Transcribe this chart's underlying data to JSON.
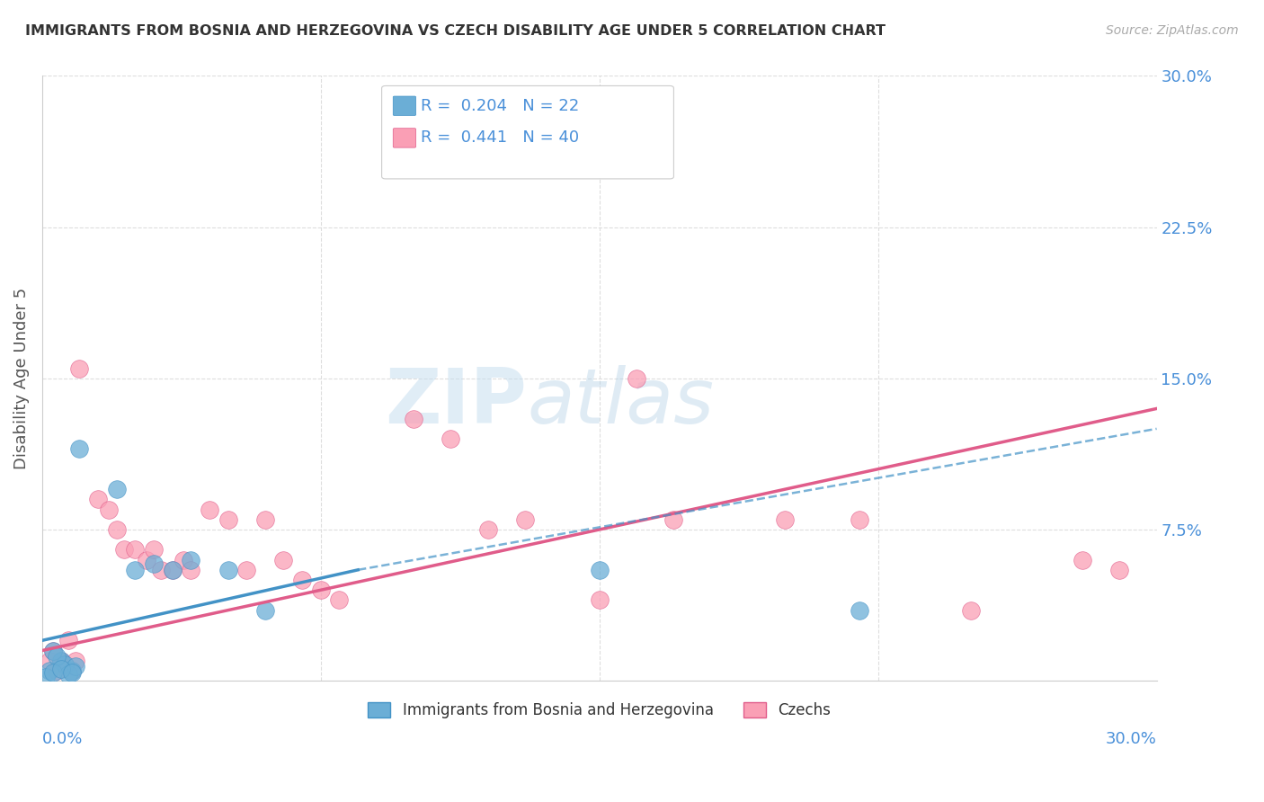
{
  "title": "IMMIGRANTS FROM BOSNIA AND HERZEGOVINA VS CZECH DISABILITY AGE UNDER 5 CORRELATION CHART",
  "source": "Source: ZipAtlas.com",
  "ylabel": "Disability Age Under 5",
  "xlim": [
    0.0,
    0.3
  ],
  "ylim": [
    0.0,
    0.3
  ],
  "watermark_zip": "ZIP",
  "watermark_atlas": "atlas",
  "legend_blue_r": "0.204",
  "legend_blue_n": "22",
  "legend_pink_r": "0.441",
  "legend_pink_n": "40",
  "legend_label_blue": "Immigrants from Bosnia and Herzegovina",
  "legend_label_pink": "Czechs",
  "blue_color": "#6baed6",
  "pink_color": "#fa9fb5",
  "blue_line_color": "#4292c6",
  "pink_line_color": "#e05c8a",
  "blue_scatter": [
    [
      0.005,
      0.01
    ],
    [
      0.008,
      0.005
    ],
    [
      0.003,
      0.015
    ],
    [
      0.006,
      0.008
    ],
    [
      0.002,
      0.005
    ],
    [
      0.004,
      0.012
    ],
    [
      0.007,
      0.003
    ],
    [
      0.009,
      0.007
    ],
    [
      0.001,
      0.002
    ],
    [
      0.003,
      0.004
    ],
    [
      0.005,
      0.006
    ],
    [
      0.008,
      0.004
    ],
    [
      0.01,
      0.115
    ],
    [
      0.02,
      0.095
    ],
    [
      0.025,
      0.055
    ],
    [
      0.03,
      0.058
    ],
    [
      0.035,
      0.055
    ],
    [
      0.04,
      0.06
    ],
    [
      0.05,
      0.055
    ],
    [
      0.06,
      0.035
    ],
    [
      0.15,
      0.055
    ],
    [
      0.22,
      0.035
    ]
  ],
  "pink_scatter": [
    [
      0.002,
      0.01
    ],
    [
      0.004,
      0.005
    ],
    [
      0.006,
      0.008
    ],
    [
      0.003,
      0.015
    ],
    [
      0.005,
      0.01
    ],
    [
      0.007,
      0.02
    ],
    [
      0.008,
      0.005
    ],
    [
      0.009,
      0.01
    ],
    [
      0.01,
      0.155
    ],
    [
      0.015,
      0.09
    ],
    [
      0.018,
      0.085
    ],
    [
      0.02,
      0.075
    ],
    [
      0.022,
      0.065
    ],
    [
      0.025,
      0.065
    ],
    [
      0.028,
      0.06
    ],
    [
      0.03,
      0.065
    ],
    [
      0.032,
      0.055
    ],
    [
      0.035,
      0.055
    ],
    [
      0.038,
      0.06
    ],
    [
      0.04,
      0.055
    ],
    [
      0.045,
      0.085
    ],
    [
      0.05,
      0.08
    ],
    [
      0.055,
      0.055
    ],
    [
      0.06,
      0.08
    ],
    [
      0.065,
      0.06
    ],
    [
      0.07,
      0.05
    ],
    [
      0.075,
      0.045
    ],
    [
      0.08,
      0.04
    ],
    [
      0.1,
      0.13
    ],
    [
      0.11,
      0.12
    ],
    [
      0.12,
      0.075
    ],
    [
      0.13,
      0.08
    ],
    [
      0.15,
      0.04
    ],
    [
      0.16,
      0.15
    ],
    [
      0.17,
      0.08
    ],
    [
      0.2,
      0.08
    ],
    [
      0.22,
      0.08
    ],
    [
      0.25,
      0.035
    ],
    [
      0.28,
      0.06
    ],
    [
      0.29,
      0.055
    ]
  ],
  "blue_line_solid": [
    [
      0.0,
      0.02
    ],
    [
      0.085,
      0.055
    ]
  ],
  "blue_line_dashed": [
    [
      0.085,
      0.055
    ],
    [
      0.3,
      0.125
    ]
  ],
  "pink_line": [
    [
      0.0,
      0.015
    ],
    [
      0.3,
      0.135
    ]
  ],
  "background_color": "#ffffff",
  "grid_color": "#dddddd",
  "title_color": "#333333",
  "tick_label_color": "#4a90d9",
  "ytick_vals": [
    0.0,
    0.075,
    0.15,
    0.225,
    0.3
  ],
  "ytick_labels": [
    "",
    "7.5%",
    "15.0%",
    "22.5%",
    "30.0%"
  ]
}
